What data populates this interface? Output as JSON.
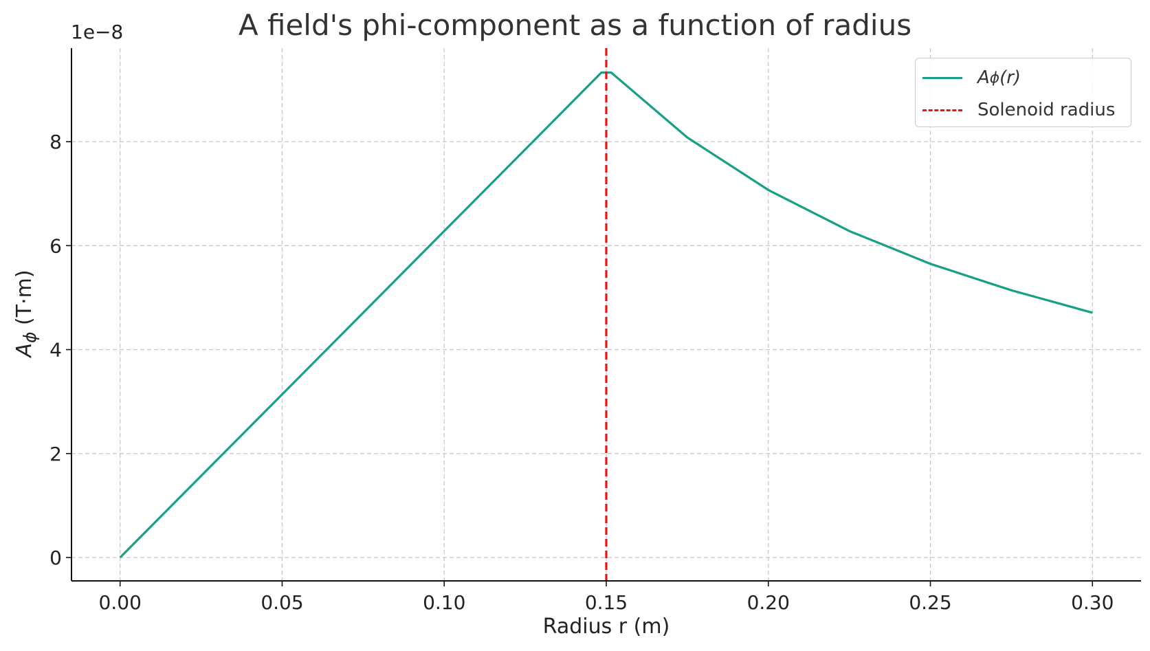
{
  "chart_data": {
    "type": "line",
    "title": "A field's phi-component as a function of radius",
    "xlabel": "Radius r (m)",
    "ylabel": "A_ϕ (T·m)",
    "ylabel_main": "A",
    "ylabel_sub": "ϕ",
    "ylabel_unit": "(T·m)",
    "y_offset_text": "1e−8",
    "xlim": [
      -0.015,
      0.315
    ],
    "ylim": [
      -0.45,
      9.8
    ],
    "y_multiplier": 1e-08,
    "grid": true,
    "legend_position": "top-right",
    "x_ticks": [
      0.0,
      0.05,
      0.1,
      0.15,
      0.2,
      0.25,
      0.3
    ],
    "x_tick_labels": [
      "0.00",
      "0.05",
      "0.10",
      "0.15",
      "0.20",
      "0.25",
      "0.30"
    ],
    "y_ticks": [
      0,
      2,
      4,
      6,
      8
    ],
    "y_tick_labels": [
      "0",
      "2",
      "4",
      "6",
      "8"
    ],
    "series": [
      {
        "name": "A_ϕ(r)",
        "legend_main": "A",
        "legend_sub": "ϕ",
        "legend_tail": "(r)",
        "color": "#16a085",
        "style": "solid",
        "x": [
          0.0,
          0.025,
          0.05,
          0.075,
          0.1,
          0.125,
          0.1485,
          0.1515,
          0.175,
          0.2,
          0.225,
          0.25,
          0.275,
          0.3
        ],
        "y": [
          0.0,
          1.57,
          3.14,
          4.71,
          6.28,
          7.85,
          9.33,
          9.33,
          8.08,
          7.07,
          6.28,
          5.65,
          5.14,
          4.71
        ]
      },
      {
        "name": "Solenoid radius",
        "color": "#e8140f",
        "style": "dashed",
        "vline_x": 0.15
      }
    ]
  }
}
